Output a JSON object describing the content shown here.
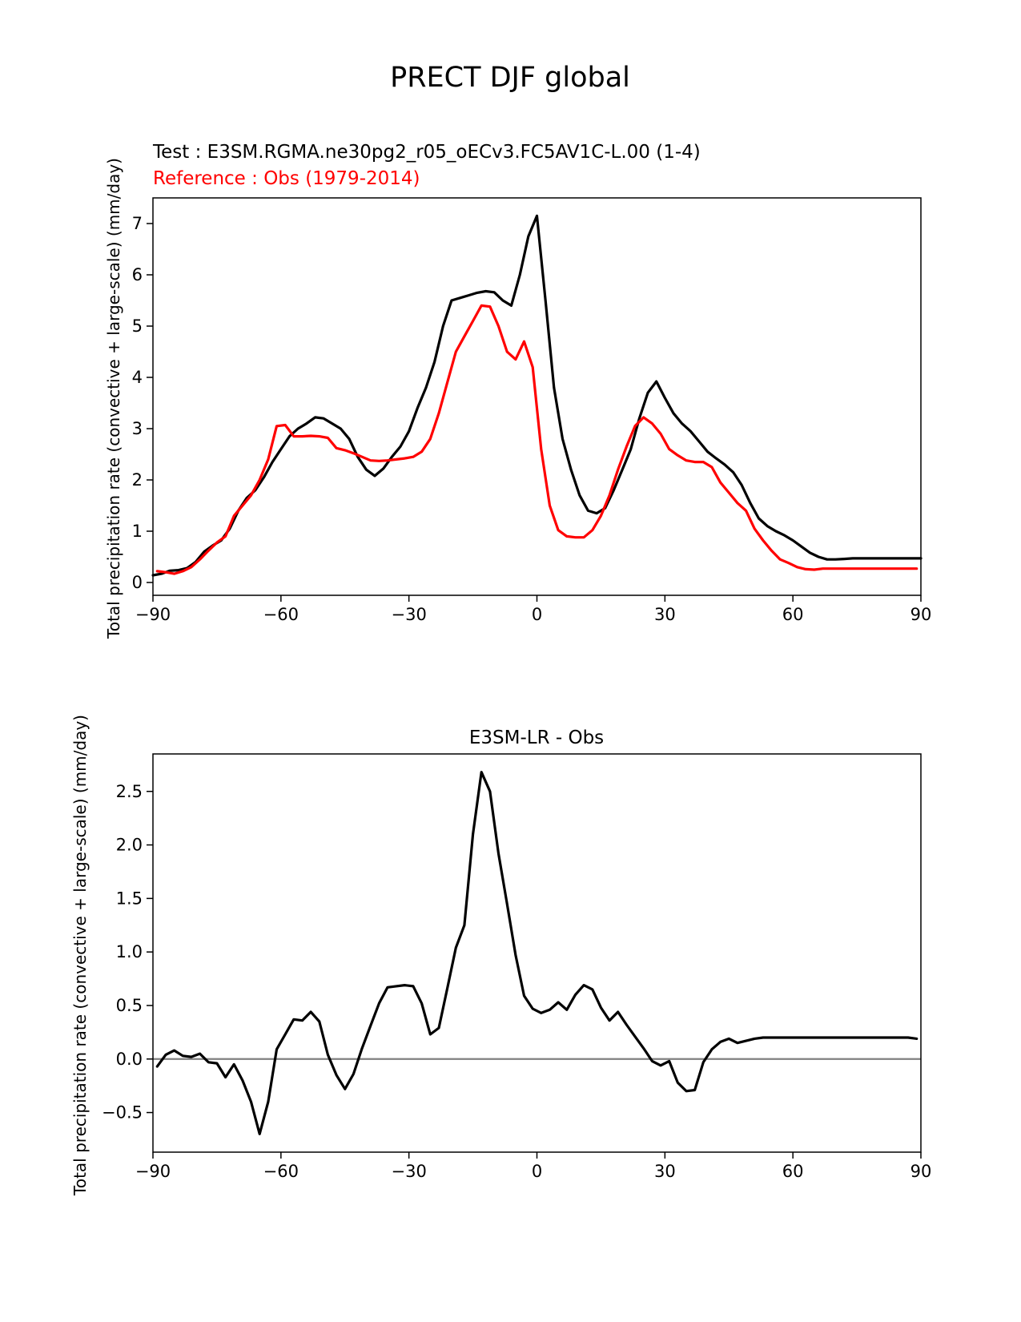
{
  "figure": {
    "title": "PRECT DJF global"
  },
  "colors": {
    "test": "#000000",
    "reference": "#ff0000",
    "difference": "#000000",
    "zero_line": "#808080"
  },
  "chart_data": [
    {
      "type": "line",
      "title_test": "Test : E3SM.RGMA.ne30pg2_r05_oECv3.FC5AV1C-L.00 (1-4)",
      "title_reference": "Reference : Obs (1979-2014)",
      "xlabel": "",
      "ylabel": "Total precipitation rate (convective + large-scale) (mm/day)",
      "xlim": [
        -90,
        90
      ],
      "ylim": [
        -0.25,
        7.5
      ],
      "xticks": [
        -90,
        -60,
        -30,
        0,
        30,
        60,
        90
      ],
      "xtick_labels": [
        "−90",
        "−60",
        "−30",
        "0",
        "30",
        "60",
        "90"
      ],
      "yticks": [
        0,
        1,
        2,
        3,
        4,
        5,
        6,
        7
      ],
      "ytick_labels": [
        "0",
        "1",
        "2",
        "3",
        "4",
        "5",
        "6",
        "7"
      ],
      "series": [
        {
          "name": "Test",
          "x": [
            -90,
            -88,
            -86,
            -84,
            -82,
            -80,
            -78,
            -76,
            -74,
            -72,
            -70,
            -68,
            -66,
            -64,
            -62,
            -60,
            -58,
            -56,
            -54,
            -52,
            -50,
            -48,
            -46,
            -44,
            -42,
            -40,
            -38,
            -36,
            -34,
            -32,
            -30,
            -28,
            -26,
            -24,
            -22,
            -20,
            -18,
            -16,
            -14,
            -12,
            -10,
            -8,
            -6,
            -4,
            -2,
            0,
            2,
            4,
            6,
            8,
            10,
            12,
            14,
            16,
            18,
            20,
            22,
            24,
            26,
            28,
            30,
            32,
            34,
            36,
            38,
            40,
            42,
            44,
            46,
            48,
            50,
            52,
            54,
            56,
            58,
            60,
            62,
            64,
            66,
            68,
            70,
            72,
            74,
            76,
            78,
            80,
            82,
            84,
            86,
            88,
            90
          ],
          "values": [
            0.14,
            0.17,
            0.23,
            0.24,
            0.28,
            0.4,
            0.6,
            0.72,
            0.82,
            1.05,
            1.4,
            1.65,
            1.8,
            2.05,
            2.35,
            2.6,
            2.85,
            3.0,
            3.1,
            3.22,
            3.2,
            3.1,
            3.0,
            2.8,
            2.45,
            2.2,
            2.08,
            2.22,
            2.45,
            2.65,
            2.95,
            3.4,
            3.8,
            4.3,
            5.0,
            5.5,
            5.55,
            5.6,
            5.65,
            5.68,
            5.66,
            5.5,
            5.4,
            6.0,
            6.75,
            7.15,
            5.5,
            3.8,
            2.8,
            2.2,
            1.7,
            1.4,
            1.35,
            1.45,
            1.8,
            2.2,
            2.6,
            3.2,
            3.7,
            3.92,
            3.6,
            3.3,
            3.1,
            2.95,
            2.75,
            2.55,
            2.42,
            2.3,
            2.15,
            1.9,
            1.55,
            1.25,
            1.1,
            1.0,
            0.92,
            0.82,
            0.7,
            0.58,
            0.5,
            0.45,
            0.45,
            0.46,
            0.47,
            0.47,
            0.47,
            0.47,
            0.47,
            0.47,
            0.47,
            0.47,
            0.47
          ]
        },
        {
          "name": "Reference",
          "x": [
            -89,
            -87,
            -85,
            -83,
            -81,
            -79,
            -77,
            -75,
            -73,
            -71,
            -69,
            -67,
            -65,
            -63,
            -61,
            -59,
            -57,
            -55,
            -53,
            -51,
            -49,
            -47,
            -45,
            -43,
            -41,
            -39,
            -37,
            -35,
            -33,
            -31,
            -29,
            -27,
            -25,
            -23,
            -21,
            -19,
            -17,
            -15,
            -13,
            -11,
            -9,
            -7,
            -5,
            -3,
            -1,
            1,
            3,
            5,
            7,
            9,
            11,
            13,
            15,
            17,
            19,
            21,
            23,
            25,
            27,
            29,
            31,
            33,
            35,
            37,
            39,
            41,
            43,
            45,
            47,
            49,
            51,
            53,
            55,
            57,
            59,
            61,
            63,
            65,
            67,
            69,
            71,
            73,
            75,
            77,
            79,
            81,
            83,
            85,
            87,
            89
          ],
          "values": [
            0.22,
            0.2,
            0.17,
            0.22,
            0.3,
            0.45,
            0.62,
            0.78,
            0.9,
            1.3,
            1.5,
            1.7,
            2.0,
            2.4,
            3.05,
            3.07,
            2.85,
            2.85,
            2.86,
            2.85,
            2.82,
            2.62,
            2.58,
            2.52,
            2.45,
            2.38,
            2.37,
            2.38,
            2.4,
            2.42,
            2.45,
            2.55,
            2.8,
            3.3,
            3.9,
            4.5,
            4.8,
            5.1,
            5.4,
            5.38,
            5.0,
            4.5,
            4.35,
            4.7,
            4.2,
            2.6,
            1.5,
            1.02,
            0.9,
            0.88,
            0.88,
            1.02,
            1.3,
            1.7,
            2.2,
            2.65,
            3.05,
            3.22,
            3.1,
            2.9,
            2.6,
            2.48,
            2.38,
            2.35,
            2.35,
            2.25,
            1.95,
            1.75,
            1.55,
            1.4,
            1.05,
            0.82,
            0.62,
            0.45,
            0.38,
            0.3,
            0.26,
            0.25,
            0.27,
            0.27,
            0.27,
            0.27,
            0.27,
            0.27,
            0.27,
            0.27,
            0.27,
            0.27,
            0.27,
            0.27
          ]
        }
      ]
    },
    {
      "type": "line",
      "title": "E3SM-LR - Obs",
      "xlabel": "",
      "ylabel": "Total precipitation rate (convective + large-scale) (mm/day)",
      "xlim": [
        -90,
        90
      ],
      "ylim": [
        -0.87,
        2.85
      ],
      "xticks": [
        -90,
        -60,
        -30,
        0,
        30,
        60,
        90
      ],
      "xtick_labels": [
        "−90",
        "−60",
        "−30",
        "0",
        "30",
        "60",
        "90"
      ],
      "yticks": [
        -0.5,
        0.0,
        0.5,
        1.0,
        1.5,
        2.0,
        2.5
      ],
      "ytick_labels": [
        "−0.5",
        "0.0",
        "0.5",
        "1.0",
        "1.5",
        "2.0",
        "2.5"
      ],
      "reference_line": 0,
      "series": [
        {
          "name": "E3SM-LR - Obs",
          "x": [
            -89,
            -87,
            -85,
            -83,
            -81,
            -79,
            -77,
            -75,
            -73,
            -71,
            -69,
            -67,
            -65,
            -63,
            -61,
            -59,
            -57,
            -55,
            -53,
            -51,
            -49,
            -47,
            -45,
            -43,
            -41,
            -39,
            -37,
            -35,
            -33,
            -31,
            -29,
            -27,
            -25,
            -23,
            -21,
            -19,
            -17,
            -15,
            -13,
            -11,
            -9,
            -7,
            -5,
            -3,
            -1,
            1,
            3,
            5,
            7,
            9,
            11,
            13,
            15,
            17,
            19,
            21,
            23,
            25,
            27,
            29,
            31,
            33,
            35,
            37,
            39,
            41,
            43,
            45,
            47,
            49,
            51,
            53,
            55,
            57,
            59,
            61,
            63,
            65,
            67,
            69,
            71,
            73,
            75,
            77,
            79,
            81,
            83,
            85,
            87,
            89
          ],
          "values": [
            -0.07,
            0.04,
            0.08,
            0.03,
            0.02,
            0.05,
            -0.03,
            -0.04,
            -0.17,
            -0.05,
            -0.2,
            -0.4,
            -0.7,
            -0.4,
            0.09,
            0.23,
            0.37,
            0.36,
            0.44,
            0.35,
            0.04,
            -0.15,
            -0.28,
            -0.14,
            0.1,
            0.31,
            0.52,
            0.67,
            0.68,
            0.69,
            0.68,
            0.52,
            0.23,
            0.29,
            0.66,
            1.04,
            1.25,
            2.1,
            2.68,
            2.5,
            1.92,
            1.45,
            0.97,
            0.59,
            0.47,
            0.43,
            0.46,
            0.53,
            0.46,
            0.6,
            0.69,
            0.65,
            0.48,
            0.36,
            0.44,
            0.32,
            0.21,
            0.1,
            -0.02,
            -0.06,
            -0.02,
            -0.22,
            -0.3,
            -0.29,
            -0.03,
            0.09,
            0.16,
            0.19,
            0.15,
            0.17,
            0.19,
            0.2,
            0.2,
            0.2,
            0.2,
            0.2,
            0.2,
            0.2,
            0.2,
            0.2,
            0.2,
            0.2,
            0.2,
            0.2,
            0.2,
            0.2,
            0.2,
            0.2,
            0.2,
            0.19
          ]
        }
      ]
    }
  ]
}
